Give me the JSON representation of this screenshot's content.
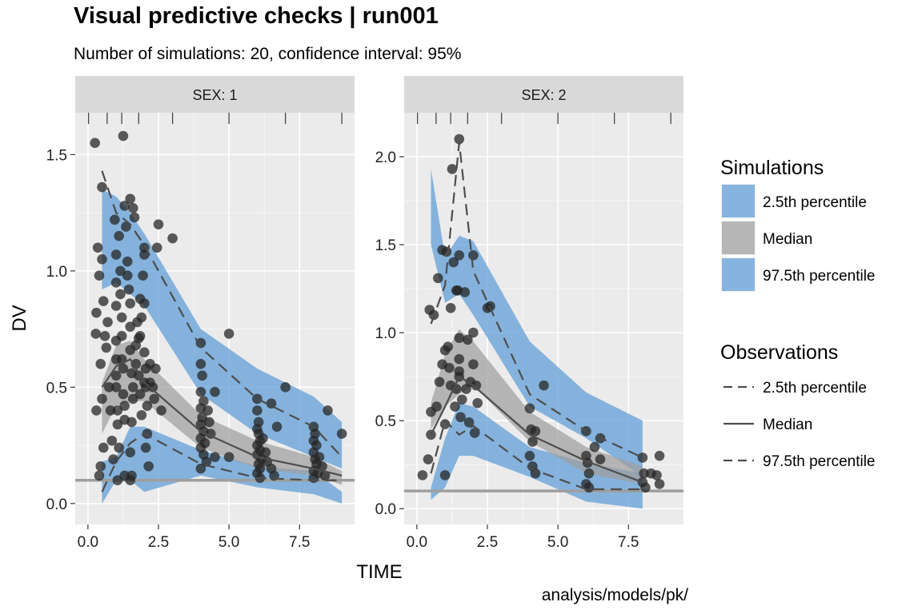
{
  "title": "Visual predictive checks | run001",
  "subtitle": "Number of simulations: 20, confidence interval: 95%",
  "caption": "analysis/models/pk/",
  "colors": {
    "panel_bg": "#ebebeb",
    "strip_bg": "#d9d9d9",
    "grid": "#ffffff",
    "pi_fill": "#5b9bd5",
    "median_fill": "#9e9e9e",
    "obs_point": "#262626",
    "line": "#4d4d4d",
    "lloq": "#9e9e9e"
  },
  "chart_data": {
    "type": "scatter",
    "xlabel": "TIME",
    "ylabel": "DV",
    "lloq": 0.1,
    "legend": {
      "placement": "right",
      "simulations_title": "Simulations",
      "simulations_items": [
        "2.5th percentile",
        "Median",
        "97.5th percentile"
      ],
      "observations_title": "Observations",
      "observations_items": [
        "2.5th percentile",
        "Median",
        "97.5th percentile"
      ]
    },
    "panels": [
      {
        "strip": "SEX: 1",
        "xlim": [
          -0.45,
          9.45
        ],
        "ylim": [
          -0.09,
          1.68
        ],
        "x_ticks": [
          0,
          2.5,
          5,
          7.5
        ],
        "x_tick_labels": [
          "0.0",
          "2.5",
          "5.0",
          "7.5"
        ],
        "y_ticks": [
          0,
          0.5,
          1.0,
          1.5
        ],
        "y_tick_labels": [
          "0.0",
          "0.5",
          "1.0",
          "1.5"
        ],
        "bin_edges": [
          0.02,
          0.68,
          1.2,
          1.8,
          3.0,
          5.0,
          7.0,
          9.0
        ],
        "bin_x": [
          0.5,
          1,
          1.5,
          2,
          4,
          6,
          8,
          9
        ],
        "pi_lower_band": [
          [
            0,
            0.18
          ],
          [
            0.1,
            0.2
          ],
          [
            0.1,
            0.33
          ],
          [
            0.05,
            0.33
          ],
          [
            0.12,
            0.23
          ],
          [
            0.07,
            0.16
          ],
          [
            0.04,
            0.14
          ],
          [
            0,
            0.05
          ]
        ],
        "median_band": [
          [
            0.3,
            0.52
          ],
          [
            0.42,
            0.68
          ],
          [
            0.44,
            0.7
          ],
          [
            0.44,
            0.62
          ],
          [
            0.24,
            0.38
          ],
          [
            0.15,
            0.27
          ],
          [
            0.12,
            0.2
          ],
          [
            0.08,
            0.14
          ]
        ],
        "pi_upper_band": [
          [
            0.92,
            1.35
          ],
          [
            0.95,
            1.32
          ],
          [
            0.9,
            1.25
          ],
          [
            0.85,
            1.16
          ],
          [
            0.47,
            0.75
          ],
          [
            0.3,
            0.58
          ],
          [
            0.2,
            0.46
          ],
          [
            0.15,
            0.35
          ]
        ],
        "obs_lower": [
          0.05,
          0.18,
          0.26,
          0.3,
          0.17,
          0.11,
          0.1,
          0.1
        ],
        "obs_median": [
          0.5,
          0.59,
          0.62,
          0.52,
          0.31,
          0.2,
          0.15,
          0.12
        ],
        "obs_upper": [
          1.43,
          1.25,
          1.2,
          1.11,
          0.67,
          0.45,
          0.33,
          0.2
        ],
        "observations": [
          [
            0.25,
            1.55
          ],
          [
            1.25,
            1.58
          ],
          [
            0.3,
            0.82
          ],
          [
            0.35,
            1.1
          ],
          [
            0.28,
            0.73
          ],
          [
            0.3,
            0.4
          ],
          [
            0.4,
            0.98
          ],
          [
            0.45,
            0.6
          ],
          [
            0.5,
            0.45
          ],
          [
            0.55,
            0.24
          ],
          [
            0.45,
            0.16
          ],
          [
            0.4,
            0.12
          ],
          [
            0.5,
            1.05
          ],
          [
            0.55,
            0.87
          ],
          [
            0.6,
            0.72
          ],
          [
            0.65,
            0.67
          ],
          [
            0.7,
            0.78
          ],
          [
            0.75,
            0.5
          ],
          [
            0.8,
            0.4
          ],
          [
            0.85,
            0.27
          ],
          [
            0.5,
            1.36
          ],
          [
            0.9,
            0.19
          ],
          [
            0.95,
            1.22
          ],
          [
            1.0,
            1.07
          ],
          [
            1.0,
            0.95
          ],
          [
            1.0,
            0.85
          ],
          [
            1.0,
            0.7
          ],
          [
            1.0,
            0.62
          ],
          [
            1.0,
            0.55
          ],
          [
            1.0,
            0.5
          ],
          [
            1.05,
            0.4
          ],
          [
            1.05,
            0.34
          ],
          [
            1.1,
            0.24
          ],
          [
            1.1,
            1.15
          ],
          [
            1.15,
            1.0
          ],
          [
            1.15,
            0.9
          ],
          [
            1.2,
            0.8
          ],
          [
            1.2,
            0.72
          ],
          [
            1.2,
            0.62
          ],
          [
            1.25,
            0.58
          ],
          [
            1.25,
            0.47
          ],
          [
            1.3,
            0.42
          ],
          [
            1.3,
            0.36
          ],
          [
            1.3,
            1.28
          ],
          [
            1.35,
            1.19
          ],
          [
            1.4,
            1.04
          ],
          [
            1.4,
            0.98
          ],
          [
            1.45,
            0.92
          ],
          [
            1.5,
            1.31
          ],
          [
            1.5,
            0.86
          ],
          [
            1.5,
            0.76
          ],
          [
            1.5,
            0.66
          ],
          [
            1.55,
            0.56
          ],
          [
            1.6,
            0.5
          ],
          [
            1.6,
            0.45
          ],
          [
            1.55,
            0.35
          ],
          [
            1.5,
            0.22
          ],
          [
            1.55,
            0.12
          ],
          [
            1.6,
            1.27
          ],
          [
            1.65,
            1.23
          ],
          [
            1.7,
            0.68
          ],
          [
            1.7,
            0.6
          ],
          [
            1.75,
            0.78
          ],
          [
            1.8,
            0.55
          ],
          [
            1.85,
            0.47
          ],
          [
            1.9,
            0.38
          ],
          [
            1.95,
            0.98
          ],
          [
            2.0,
            1.1
          ],
          [
            2.0,
            1.07
          ],
          [
            2.0,
            0.86
          ],
          [
            2.0,
            0.65
          ],
          [
            2.05,
            0.58
          ],
          [
            2.05,
            0.5
          ],
          [
            2.1,
            0.42
          ],
          [
            2.1,
            0.3
          ],
          [
            2.05,
            0.24
          ],
          [
            2.15,
            0.16
          ],
          [
            1.85,
            0.72
          ],
          [
            1.9,
            0.8
          ],
          [
            2.0,
            0.52
          ],
          [
            2.2,
            0.52
          ],
          [
            2.2,
            0.6
          ],
          [
            2.5,
            1.2
          ],
          [
            2.45,
            1.1
          ],
          [
            2.4,
            0.58
          ],
          [
            2.3,
            0.5
          ],
          [
            2.35,
            0.45
          ],
          [
            2.6,
            0.4
          ],
          [
            3.0,
            1.14
          ],
          [
            1.85,
            0.88
          ],
          [
            1.8,
            0.71
          ],
          [
            1.05,
            0.1
          ],
          [
            1.3,
            0.12
          ],
          [
            1.5,
            0.1
          ],
          [
            4.0,
            0.69
          ],
          [
            4.0,
            0.6
          ],
          [
            4.05,
            0.55
          ],
          [
            4.0,
            0.48
          ],
          [
            4.1,
            0.44
          ],
          [
            4.0,
            0.41
          ],
          [
            4.05,
            0.37
          ],
          [
            4.0,
            0.34
          ],
          [
            4.1,
            0.31
          ],
          [
            4.0,
            0.28
          ],
          [
            4.15,
            0.26
          ],
          [
            4.0,
            0.24
          ],
          [
            4.1,
            0.21
          ],
          [
            4.2,
            0.18
          ],
          [
            4.0,
            0.15
          ],
          [
            4.3,
            0.35
          ],
          [
            4.25,
            0.4
          ],
          [
            4.35,
            0.3
          ],
          [
            4.5,
            0.48
          ],
          [
            4.5,
            0.2
          ],
          [
            5.0,
            0.73
          ],
          [
            5.0,
            0.2
          ],
          [
            6.0,
            0.45
          ],
          [
            6.0,
            0.4
          ],
          [
            6.05,
            0.35
          ],
          [
            6.0,
            0.32
          ],
          [
            6.05,
            0.3
          ],
          [
            6.1,
            0.27
          ],
          [
            6.0,
            0.25
          ],
          [
            6.1,
            0.23
          ],
          [
            6.0,
            0.21
          ],
          [
            6.15,
            0.19
          ],
          [
            6.05,
            0.17
          ],
          [
            6.1,
            0.15
          ],
          [
            6.0,
            0.13
          ],
          [
            6.1,
            0.11
          ],
          [
            6.2,
            0.28
          ],
          [
            6.3,
            0.22
          ],
          [
            6.35,
            0.18
          ],
          [
            6.5,
            0.43
          ],
          [
            6.5,
            0.15
          ],
          [
            6.7,
            0.33
          ],
          [
            7.0,
            0.5
          ],
          [
            6.6,
            0.12
          ],
          [
            8.0,
            0.33
          ],
          [
            8.05,
            0.3
          ],
          [
            8.0,
            0.27
          ],
          [
            8.1,
            0.25
          ],
          [
            8.0,
            0.22
          ],
          [
            8.05,
            0.19
          ],
          [
            8.1,
            0.17
          ],
          [
            8.0,
            0.14
          ],
          [
            8.15,
            0.13
          ],
          [
            8.0,
            0.11
          ],
          [
            8.2,
            0.2
          ],
          [
            8.3,
            0.16
          ],
          [
            8.5,
            0.4
          ],
          [
            9.0,
            0.3
          ],
          [
            8.4,
            0.12
          ]
        ]
      },
      {
        "strip": "SEX: 2",
        "xlim": [
          -0.45,
          9.45
        ],
        "ylim": [
          -0.09,
          2.25
        ],
        "x_ticks": [
          0,
          2.5,
          5,
          7.5
        ],
        "x_tick_labels": [
          "0.0",
          "2.5",
          "5.0",
          "7.5"
        ],
        "y_ticks": [
          0,
          0.5,
          1.0,
          1.5,
          2.0
        ],
        "y_tick_labels": [
          "0.0",
          "0.5",
          "1.0",
          "1.5",
          "2.0"
        ],
        "bin_edges": [
          0.02,
          0.68,
          1.2,
          1.8,
          3.0,
          5.0,
          7.0,
          9.0
        ],
        "bin_x": [
          0.5,
          1,
          1.5,
          2,
          4,
          6,
          8
        ],
        "pi_lower_band": [
          [
            0.05,
            0.12
          ],
          [
            0.12,
            0.4
          ],
          [
            0.3,
            0.6
          ],
          [
            0.3,
            0.58
          ],
          [
            0.18,
            0.35
          ],
          [
            0.04,
            0.26
          ],
          [
            0.0,
            0.2
          ]
        ],
        "median_band": [
          [
            0.45,
            0.6
          ],
          [
            0.58,
            0.88
          ],
          [
            0.65,
            1.02
          ],
          [
            0.7,
            0.95
          ],
          [
            0.38,
            0.55
          ],
          [
            0.2,
            0.35
          ],
          [
            0.14,
            0.24
          ]
        ],
        "pi_upper_band": [
          [
            1.5,
            1.93
          ],
          [
            1.17,
            1.43
          ],
          [
            1.22,
            1.55
          ],
          [
            1.1,
            1.52
          ],
          [
            0.58,
            0.95
          ],
          [
            0.4,
            0.66
          ],
          [
            0.18,
            0.5
          ]
        ],
        "obs_lower": [
          0.2,
          0.5,
          0.42,
          0.47,
          0.23,
          0.11,
          0.11
        ],
        "obs_median": [
          0.42,
          0.58,
          0.75,
          0.7,
          0.42,
          0.27,
          0.15
        ],
        "obs_upper": [
          1.05,
          1.27,
          2.08,
          1.35,
          0.65,
          0.44,
          0.29
        ],
        "observations": [
          [
            0.2,
            0.19
          ],
          [
            0.4,
            0.28
          ],
          [
            0.5,
            0.55
          ],
          [
            0.5,
            0.42
          ],
          [
            0.45,
            1.13
          ],
          [
            0.6,
            1.1
          ],
          [
            0.75,
            1.31
          ],
          [
            0.7,
            0.58
          ],
          [
            0.8,
            0.72
          ],
          [
            0.9,
            1.47
          ],
          [
            0.9,
            0.82
          ],
          [
            1.0,
            0.9
          ],
          [
            1.0,
            0.48
          ],
          [
            1.0,
            0.19
          ],
          [
            1.05,
            1.46
          ],
          [
            1.1,
            0.92
          ],
          [
            1.15,
            0.8
          ],
          [
            1.2,
            1.14
          ],
          [
            1.2,
            0.7
          ],
          [
            1.25,
            1.93
          ],
          [
            1.3,
            1.4
          ],
          [
            1.35,
            0.58
          ],
          [
            1.4,
            1.24
          ],
          [
            1.4,
            0.68
          ],
          [
            1.5,
            2.1
          ],
          [
            1.5,
            1.44
          ],
          [
            1.5,
            0.97
          ],
          [
            1.5,
            0.85
          ],
          [
            1.5,
            0.78
          ],
          [
            1.5,
            0.75
          ],
          [
            1.55,
            0.52
          ],
          [
            1.6,
            0.62
          ],
          [
            1.7,
            1.23
          ],
          [
            1.75,
            0.68
          ],
          [
            1.8,
            0.96
          ],
          [
            1.85,
            0.49
          ],
          [
            1.9,
            0.72
          ],
          [
            2.0,
            1.44
          ],
          [
            2.0,
            1.0
          ],
          [
            2.0,
            0.82
          ],
          [
            2.05,
            0.43
          ],
          [
            2.1,
            0.7
          ],
          [
            2.15,
            0.6
          ],
          [
            2.5,
            1.14
          ],
          [
            2.6,
            1.15
          ],
          [
            1.45,
            1.24
          ],
          [
            4.0,
            0.57
          ],
          [
            4.05,
            0.45
          ],
          [
            4.1,
            0.38
          ],
          [
            4.0,
            0.3
          ],
          [
            4.1,
            0.24
          ],
          [
            4.2,
            0.2
          ],
          [
            4.2,
            0.44
          ],
          [
            4.5,
            0.7
          ],
          [
            6.0,
            0.44
          ],
          [
            6.0,
            0.3
          ],
          [
            6.05,
            0.26
          ],
          [
            6.1,
            0.2
          ],
          [
            6.0,
            0.14
          ],
          [
            6.1,
            0.12
          ],
          [
            6.3,
            0.35
          ],
          [
            6.5,
            0.4
          ],
          [
            6.5,
            0.28
          ],
          [
            8.0,
            0.29
          ],
          [
            8.05,
            0.2
          ],
          [
            8.0,
            0.15
          ],
          [
            8.1,
            0.12
          ],
          [
            8.3,
            0.2
          ],
          [
            8.5,
            0.19
          ],
          [
            8.6,
            0.3
          ],
          [
            8.6,
            0.14
          ]
        ]
      }
    ]
  }
}
